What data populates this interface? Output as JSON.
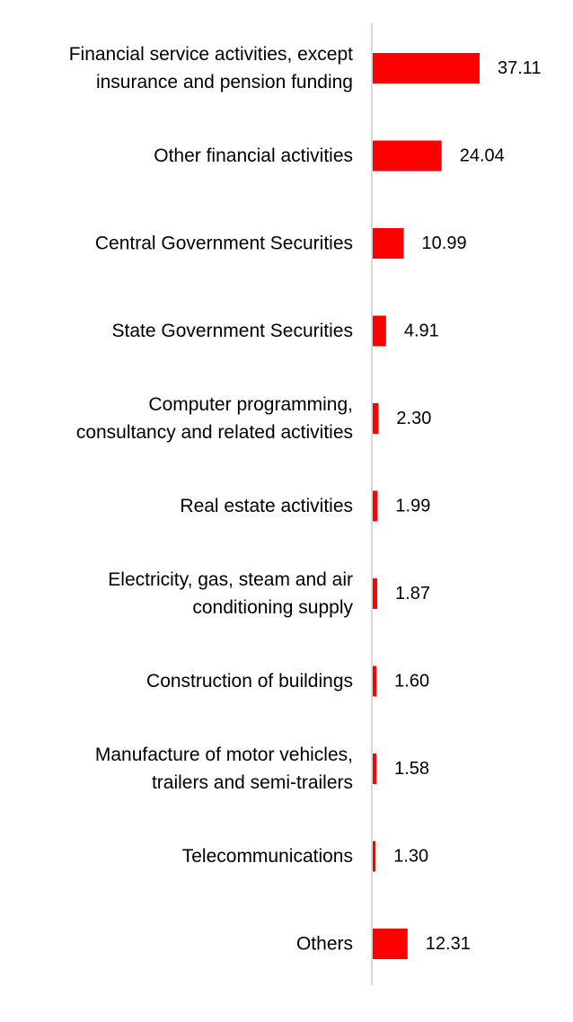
{
  "chart_data": {
    "type": "bar",
    "orientation": "horizontal",
    "title": "",
    "xlabel": "",
    "ylabel": "",
    "grid": false,
    "legend": "none",
    "bar_color": "#ff0000",
    "axis_color": "#d9d9d9",
    "text_color": "#000000",
    "value_format_decimals": 2,
    "categories": [
      [
        "Financial service activities, except",
        "insurance and pension funding"
      ],
      [
        "Other financial activities"
      ],
      [
        "Central Government Securities"
      ],
      [
        "State Government Securities"
      ],
      [
        "Computer programming,",
        "consultancy and related activities"
      ],
      [
        "Real estate activities"
      ],
      [
        "Electricity, gas, steam and air",
        "conditioning supply"
      ],
      [
        "Construction of buildings"
      ],
      [
        "Manufacture of motor vehicles,",
        "trailers and semi-trailers"
      ],
      [
        "Telecommunications"
      ],
      [
        "Others"
      ]
    ],
    "values": [
      37.11,
      24.04,
      10.99,
      4.91,
      2.3,
      1.99,
      1.87,
      1.6,
      1.58,
      1.3,
      12.31
    ],
    "value_labels": [
      "37.11",
      "24.04",
      "10.99",
      "4.91",
      "2.30",
      "1.99",
      "1.87",
      "1.60",
      "1.58",
      "1.30",
      "12.31"
    ],
    "xlim": [
      0,
      40
    ]
  }
}
